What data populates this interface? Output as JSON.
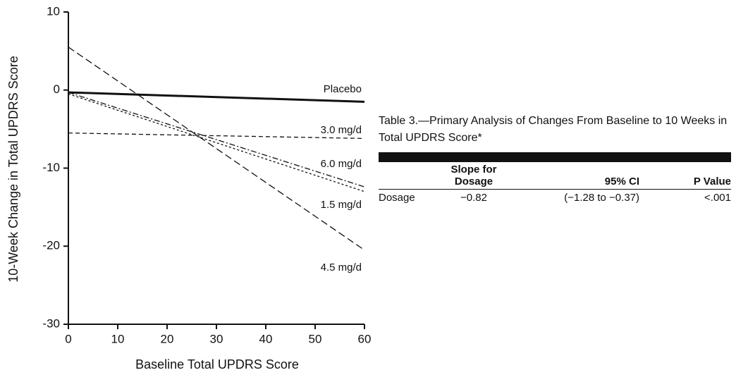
{
  "chart_data": {
    "type": "line",
    "xlabel": "Baseline Total UPDRS Score",
    "ylabel": "10-Week Change in Total UPDRS Score",
    "xlim": [
      0,
      60
    ],
    "xticks": [
      0,
      10,
      20,
      30,
      40,
      50,
      60
    ],
    "ylim": [
      -30,
      10
    ],
    "yticks": [
      -30,
      -20,
      -10,
      0,
      10
    ],
    "x": [
      0,
      60
    ],
    "series": [
      {
        "name": "Placebo",
        "color": "#111111",
        "linestyle": "solid",
        "values": [
          -0.3,
          -1.5
        ]
      },
      {
        "name": "3.0 mg/d",
        "color": "#111111",
        "linestyle": "dashed",
        "values": [
          -5.5,
          -6.2
        ]
      },
      {
        "name": "6.0 mg/d",
        "color": "#111111",
        "linestyle": "dashdot",
        "values": [
          -0.3,
          -12.4
        ]
      },
      {
        "name": "1.5 mg/d",
        "color": "#111111",
        "linestyle": "dotted",
        "values": [
          -0.5,
          -13
        ]
      },
      {
        "name": "4.5 mg/d",
        "color": "#111111",
        "linestyle": "longdash",
        "values": [
          5.5,
          -20.5
        ]
      }
    ]
  },
  "table": {
    "title": "Table 3.—Primary Analysis of Changes From Baseline to 10 Weeks in Total UPDRS Score*",
    "headers": [
      "Slope for Dosage",
      "95% CI",
      "P Value"
    ],
    "rows": [
      [
        "Dosage",
        "−0.82",
        "(−1.28 to −0.37)",
        "<.001"
      ]
    ]
  }
}
